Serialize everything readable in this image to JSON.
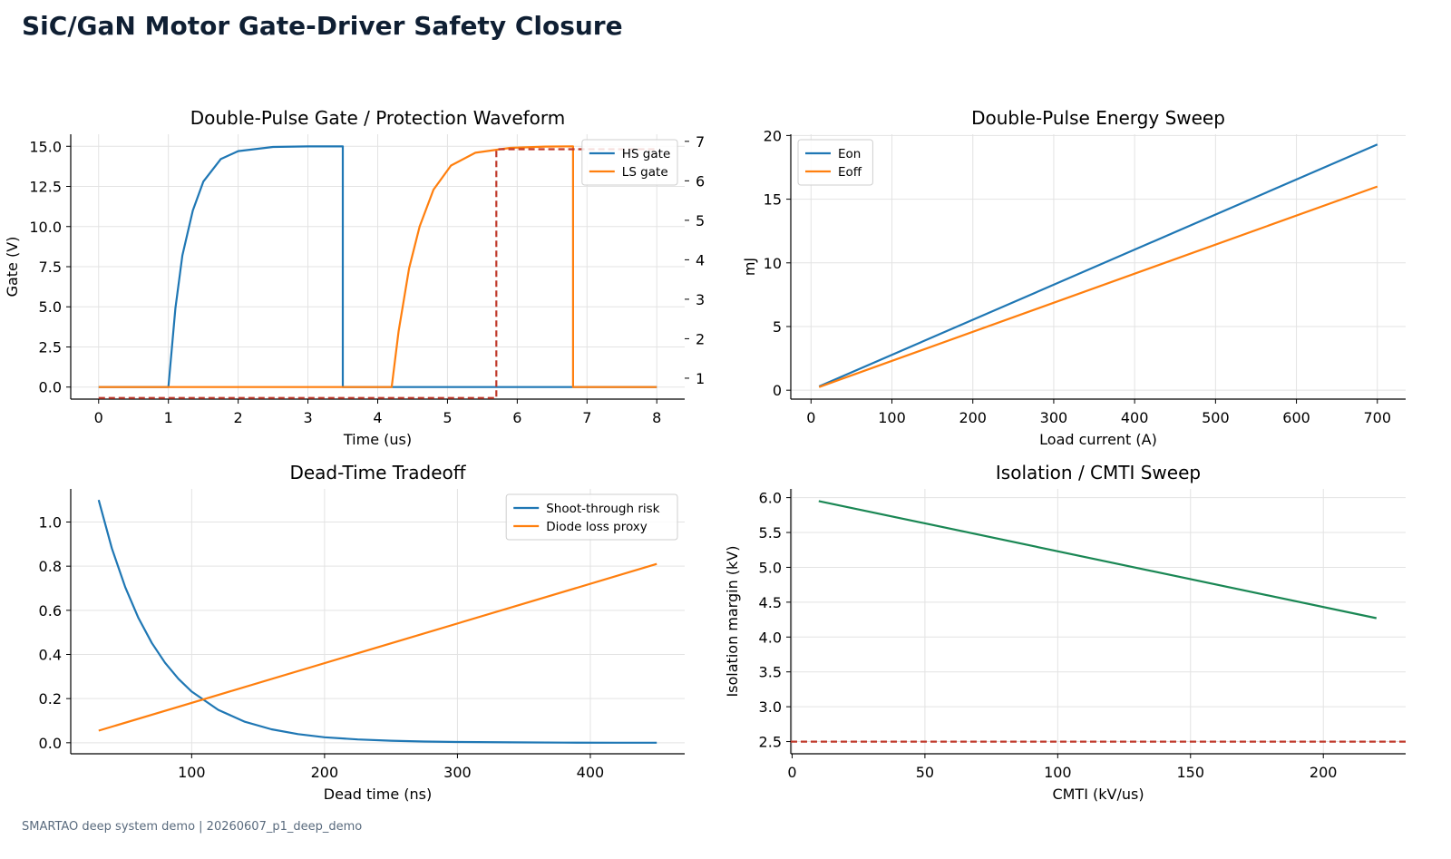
{
  "page": {
    "title": "SiC/GaN Motor Gate-Driver Safety Closure",
    "footer": "SMARTAO deep system demo | 20260607_p1_deep_demo"
  },
  "colors": {
    "blue": "#1f77b4",
    "orange": "#ff7f0e",
    "green": "#1a8754",
    "red": "#c0392b",
    "grid": "#e3e3e3"
  },
  "chart_data": [
    {
      "type": "line",
      "title": "Double-Pulse Gate / Protection Waveform",
      "xlabel": "Time (us)",
      "ylabel": "Gate (V)",
      "xlim": [
        -0.4,
        8.4
      ],
      "ylim": [
        -0.75,
        15.75
      ],
      "xticks": [
        0,
        1,
        2,
        3,
        4,
        5,
        6,
        7,
        8
      ],
      "yticks": [
        0.0,
        2.5,
        5.0,
        7.5,
        10.0,
        12.5,
        15.0
      ],
      "y2lim": [
        0.47,
        7.18
      ],
      "y2ticks": [
        1,
        2,
        3,
        4,
        5,
        6,
        7
      ],
      "grid": true,
      "legend": "top-right",
      "series": [
        {
          "name": "HS gate",
          "color": "#1f77b4",
          "x": [
            0,
            1,
            1.1,
            1.2,
            1.35,
            1.5,
            1.75,
            2.0,
            2.5,
            3.0,
            3.5,
            3.5,
            8
          ],
          "y": [
            0,
            0,
            4.9,
            8.2,
            11.0,
            12.8,
            14.2,
            14.7,
            14.96,
            14.99,
            15.0,
            0,
            0
          ]
        },
        {
          "name": "LS gate",
          "color": "#ff7f0e",
          "x": [
            0,
            4.2,
            4.3,
            4.45,
            4.6,
            4.8,
            5.05,
            5.4,
            5.9,
            6.4,
            6.8,
            6.8,
            8
          ],
          "y": [
            0,
            0,
            3.5,
            7.4,
            10.0,
            12.3,
            13.8,
            14.6,
            14.9,
            14.98,
            15.0,
            0,
            0
          ]
        },
        {
          "name": "",
          "color": "#c0392b",
          "dashed": true,
          "axis": "right",
          "x": [
            0,
            5.7,
            5.7,
            8
          ],
          "y": [
            0.5,
            0.5,
            6.8,
            6.8
          ]
        }
      ]
    },
    {
      "type": "line",
      "title": "Double-Pulse Energy Sweep",
      "xlabel": "Load current (A)",
      "ylabel": "mJ",
      "xlim": [
        -25,
        735
      ],
      "ylim": [
        -0.7,
        20.1
      ],
      "xticks": [
        0,
        100,
        200,
        300,
        400,
        500,
        600,
        700
      ],
      "yticks": [
        0,
        5,
        10,
        15,
        20
      ],
      "grid": true,
      "legend": "top-left",
      "series": [
        {
          "name": "Eon",
          "color": "#1f77b4",
          "x": [
            10,
            700
          ],
          "y": [
            0.3,
            19.3
          ]
        },
        {
          "name": "Eoff",
          "color": "#ff7f0e",
          "x": [
            10,
            700
          ],
          "y": [
            0.25,
            16.0
          ]
        }
      ]
    },
    {
      "type": "line",
      "title": "Dead-Time Tradeoff",
      "xlabel": "Dead time (ns)",
      "ylabel": "",
      "xlim": [
        9,
        471
      ],
      "ylim": [
        -0.05,
        1.15
      ],
      "xticks": [
        100,
        200,
        300,
        400
      ],
      "yticks": [
        0.0,
        0.2,
        0.4,
        0.6,
        0.8,
        1.0
      ],
      "grid": true,
      "legend": "top-right",
      "series": [
        {
          "name": "Shoot-through risk",
          "color": "#1f77b4",
          "x": [
            30,
            40,
            50,
            60,
            70,
            80,
            90,
            100,
            120,
            140,
            160,
            180,
            200,
            225,
            250,
            275,
            300,
            340,
            380,
            420,
            450
          ],
          "y": [
            1.1,
            0.88,
            0.705,
            0.565,
            0.452,
            0.362,
            0.29,
            0.232,
            0.149,
            0.095,
            0.061,
            0.039,
            0.025,
            0.015,
            0.009,
            0.0055,
            0.0035,
            0.0016,
            0.0007,
            0.0003,
            0.0002
          ]
        },
        {
          "name": "Diode loss proxy",
          "color": "#ff7f0e",
          "x": [
            30,
            450
          ],
          "y": [
            0.055,
            0.81
          ]
        }
      ]
    },
    {
      "type": "line",
      "title": "Isolation / CMTI Sweep",
      "xlabel": "CMTI (kV/us)",
      "ylabel": "Isolation margin (kV)",
      "xlim": [
        -0.5,
        231
      ],
      "ylim": [
        2.325,
        6.125
      ],
      "xticks": [
        0,
        50,
        100,
        150,
        200
      ],
      "yticks": [
        2.5,
        3.0,
        3.5,
        4.0,
        4.5,
        5.0,
        5.5,
        6.0
      ],
      "grid": true,
      "legend": "none",
      "series": [
        {
          "name": "",
          "color": "#1a8754",
          "x": [
            10,
            220
          ],
          "y": [
            5.95,
            4.27
          ]
        },
        {
          "name": "",
          "color": "#c0392b",
          "dashed": true,
          "x": [
            -0.5,
            231
          ],
          "y": [
            2.5,
            2.5
          ]
        }
      ]
    }
  ]
}
